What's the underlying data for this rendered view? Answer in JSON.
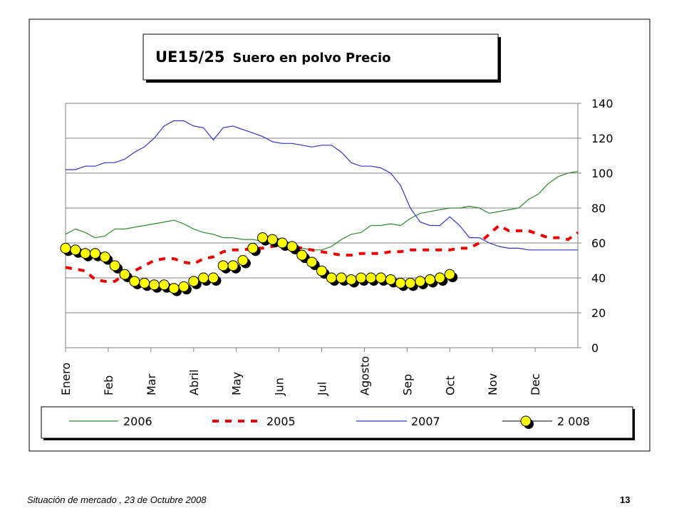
{
  "footer": {
    "text": "Situación de mercado , 23 de  Octubre 2008",
    "page_number": "13"
  },
  "chart_data": {
    "type": "line",
    "title_prefix": "UE15/25",
    "title_rest": "Suero en polvo Precio",
    "x_labels": [
      "Enero",
      "Feb",
      "Mar",
      "Abril",
      "May",
      "Jun",
      "Jul",
      "Agosto",
      "Sep",
      "Oct",
      "Nov",
      "Dec"
    ],
    "x_range": [
      0,
      52
    ],
    "y_range": [
      0,
      140
    ],
    "y_ticks": [
      "0",
      "20",
      "40",
      "60",
      "80",
      "100",
      "120",
      "140"
    ],
    "grid": true,
    "legend_position": "bottom",
    "colors": {
      "s2006": "#2e8b2e",
      "s2005": "#ee0000",
      "s2007": "#3333cc",
      "marker_fill": "#ffff00"
    },
    "series": [
      {
        "name": "2006",
        "style": "line",
        "color": "#2e8b2e",
        "x": [
          0,
          1,
          2,
          3,
          4,
          5,
          6,
          7,
          8,
          9,
          10,
          11,
          12,
          13,
          14,
          15,
          16,
          17,
          18,
          19,
          20,
          21,
          22,
          23,
          24,
          25,
          26,
          27,
          28,
          29,
          30,
          31,
          32,
          33,
          34,
          35,
          36,
          37,
          38,
          39,
          40,
          41,
          42,
          43,
          44,
          45,
          46,
          47,
          48,
          49,
          50,
          51,
          52
        ],
        "y": [
          65,
          68,
          66,
          63,
          64,
          68,
          68,
          69,
          70,
          71,
          72,
          73,
          71,
          68,
          66,
          65,
          63,
          63,
          62,
          62,
          61,
          60,
          59,
          58,
          57,
          56,
          56,
          58,
          62,
          65,
          66,
          70,
          70,
          71,
          70,
          74,
          77,
          78,
          79,
          80,
          80,
          81,
          80,
          77,
          78,
          79,
          80,
          85,
          88,
          94,
          98,
          100,
          101
        ]
      },
      {
        "name": "2005",
        "style": "dashed",
        "color": "#ee0000",
        "x": [
          0,
          2,
          3,
          4,
          5,
          6,
          7,
          8,
          9,
          10,
          11,
          12,
          13,
          14,
          15,
          16,
          17,
          18,
          19,
          20,
          21,
          22,
          23,
          24,
          25,
          26,
          27,
          28,
          29,
          30,
          31,
          32,
          33,
          34,
          35,
          36,
          37,
          38,
          39,
          40,
          41,
          42,
          43,
          44,
          45,
          46,
          47,
          48,
          49,
          50,
          51,
          52
        ],
        "y": [
          46,
          44,
          39,
          38,
          38,
          42,
          44,
          47,
          50,
          51,
          51,
          49,
          48,
          51,
          52,
          55,
          56,
          56,
          57,
          57,
          58,
          59,
          58,
          57,
          56,
          55,
          54,
          53,
          53,
          54,
          54,
          54,
          55,
          55,
          56,
          56,
          56,
          56,
          56,
          57,
          57,
          60,
          65,
          70,
          67,
          67,
          67,
          65,
          63,
          63,
          62,
          66
        ]
      },
      {
        "name": "2007",
        "style": "line",
        "color": "#3333cc",
        "x": [
          0,
          1,
          2,
          3,
          4,
          5,
          6,
          7,
          8,
          9,
          10,
          11,
          12,
          13,
          14,
          15,
          16,
          17,
          18,
          19,
          20,
          21,
          22,
          23,
          24,
          25,
          26,
          27,
          28,
          29,
          30,
          31,
          32,
          33,
          34,
          35,
          36,
          37,
          38,
          39,
          40,
          41,
          42,
          43,
          44,
          45,
          46,
          47,
          48,
          49,
          50,
          51,
          52
        ],
        "y": [
          102,
          102,
          104,
          104,
          106,
          106,
          108,
          112,
          115,
          120,
          127,
          130,
          130,
          127,
          126,
          119,
          126,
          127,
          125,
          123,
          121,
          118,
          117,
          117,
          116,
          115,
          116,
          116,
          112,
          106,
          104,
          104,
          103,
          100,
          93,
          80,
          72,
          70,
          70,
          75,
          70,
          63,
          63,
          60,
          58,
          57,
          57,
          56,
          56,
          56,
          56,
          56,
          56
        ]
      },
      {
        "name": "2 008",
        "style": "markers",
        "color": "#ffff00",
        "x": [
          0,
          1,
          2,
          3,
          4,
          5,
          6,
          7,
          8,
          9,
          10,
          11,
          12,
          13,
          14,
          15,
          16,
          17,
          18,
          19,
          20,
          21,
          22,
          23,
          24,
          25,
          26,
          27,
          28,
          29,
          30,
          31,
          32,
          33,
          34,
          35,
          36,
          37,
          38,
          39
        ],
        "y": [
          57,
          56,
          54,
          54,
          52,
          47,
          42,
          38,
          37,
          36,
          36,
          34,
          35,
          38,
          40,
          40,
          47,
          47,
          50,
          57,
          63,
          62,
          60,
          58,
          53,
          49,
          44,
          40,
          40,
          39,
          40,
          40,
          40,
          39,
          37,
          37,
          38,
          39,
          40,
          42
        ]
      }
    ]
  }
}
